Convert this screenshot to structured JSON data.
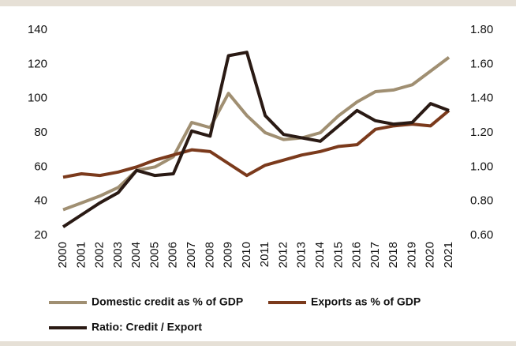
{
  "chart_data": {
    "type": "line",
    "categories": [
      "2000",
      "2001",
      "2002",
      "2003",
      "2004",
      "2005",
      "2006",
      "2007",
      "2008",
      "2009",
      "2010",
      "2011",
      "2012",
      "2013",
      "2014",
      "2015",
      "2016",
      "2017",
      "2018",
      "2019",
      "2020",
      "2021"
    ],
    "ylim": [
      20,
      140
    ],
    "yticks": [
      20,
      40,
      60,
      80,
      100,
      120,
      140
    ],
    "y2lim": [
      0.6,
      1.8
    ],
    "y2ticks": [
      {
        "value": 0.6,
        "label": "0.60"
      },
      {
        "value": 0.8,
        "label": "0.80"
      },
      {
        "value": 1.0,
        "label": "1.00"
      },
      {
        "value": 1.2,
        "label": "1.20"
      },
      {
        "value": 1.4,
        "label": "1.40"
      },
      {
        "value": 1.6,
        "label": "1.60"
      },
      {
        "value": 1.8,
        "label": "1.80"
      }
    ],
    "series": [
      {
        "name": "Domestic credit as % of GDP",
        "color": "#a08f72",
        "values": [
          35,
          39,
          43,
          48,
          58,
          60,
          66,
          86,
          83,
          103,
          90,
          80,
          76,
          77,
          80,
          90,
          98,
          104,
          105,
          108,
          116,
          124
        ]
      },
      {
        "name": "Exports as % of GDP",
        "color": "#7b3a1c",
        "values": [
          54,
          56,
          55,
          57,
          60,
          64,
          67,
          70,
          69,
          62,
          55,
          61,
          64,
          67,
          69,
          72,
          73,
          82,
          84,
          85,
          84,
          93
        ]
      },
      {
        "name": "Ratio: Credit / Export",
        "color": "#2a1a14",
        "axis": "y2",
        "values": [
          0.65,
          0.72,
          0.79,
          0.85,
          0.98,
          0.95,
          0.96,
          1.21,
          1.18,
          1.65,
          1.67,
          1.3,
          1.19,
          1.17,
          1.15,
          1.24,
          1.33,
          1.27,
          1.25,
          1.26,
          1.37,
          1.33
        ]
      }
    ]
  }
}
